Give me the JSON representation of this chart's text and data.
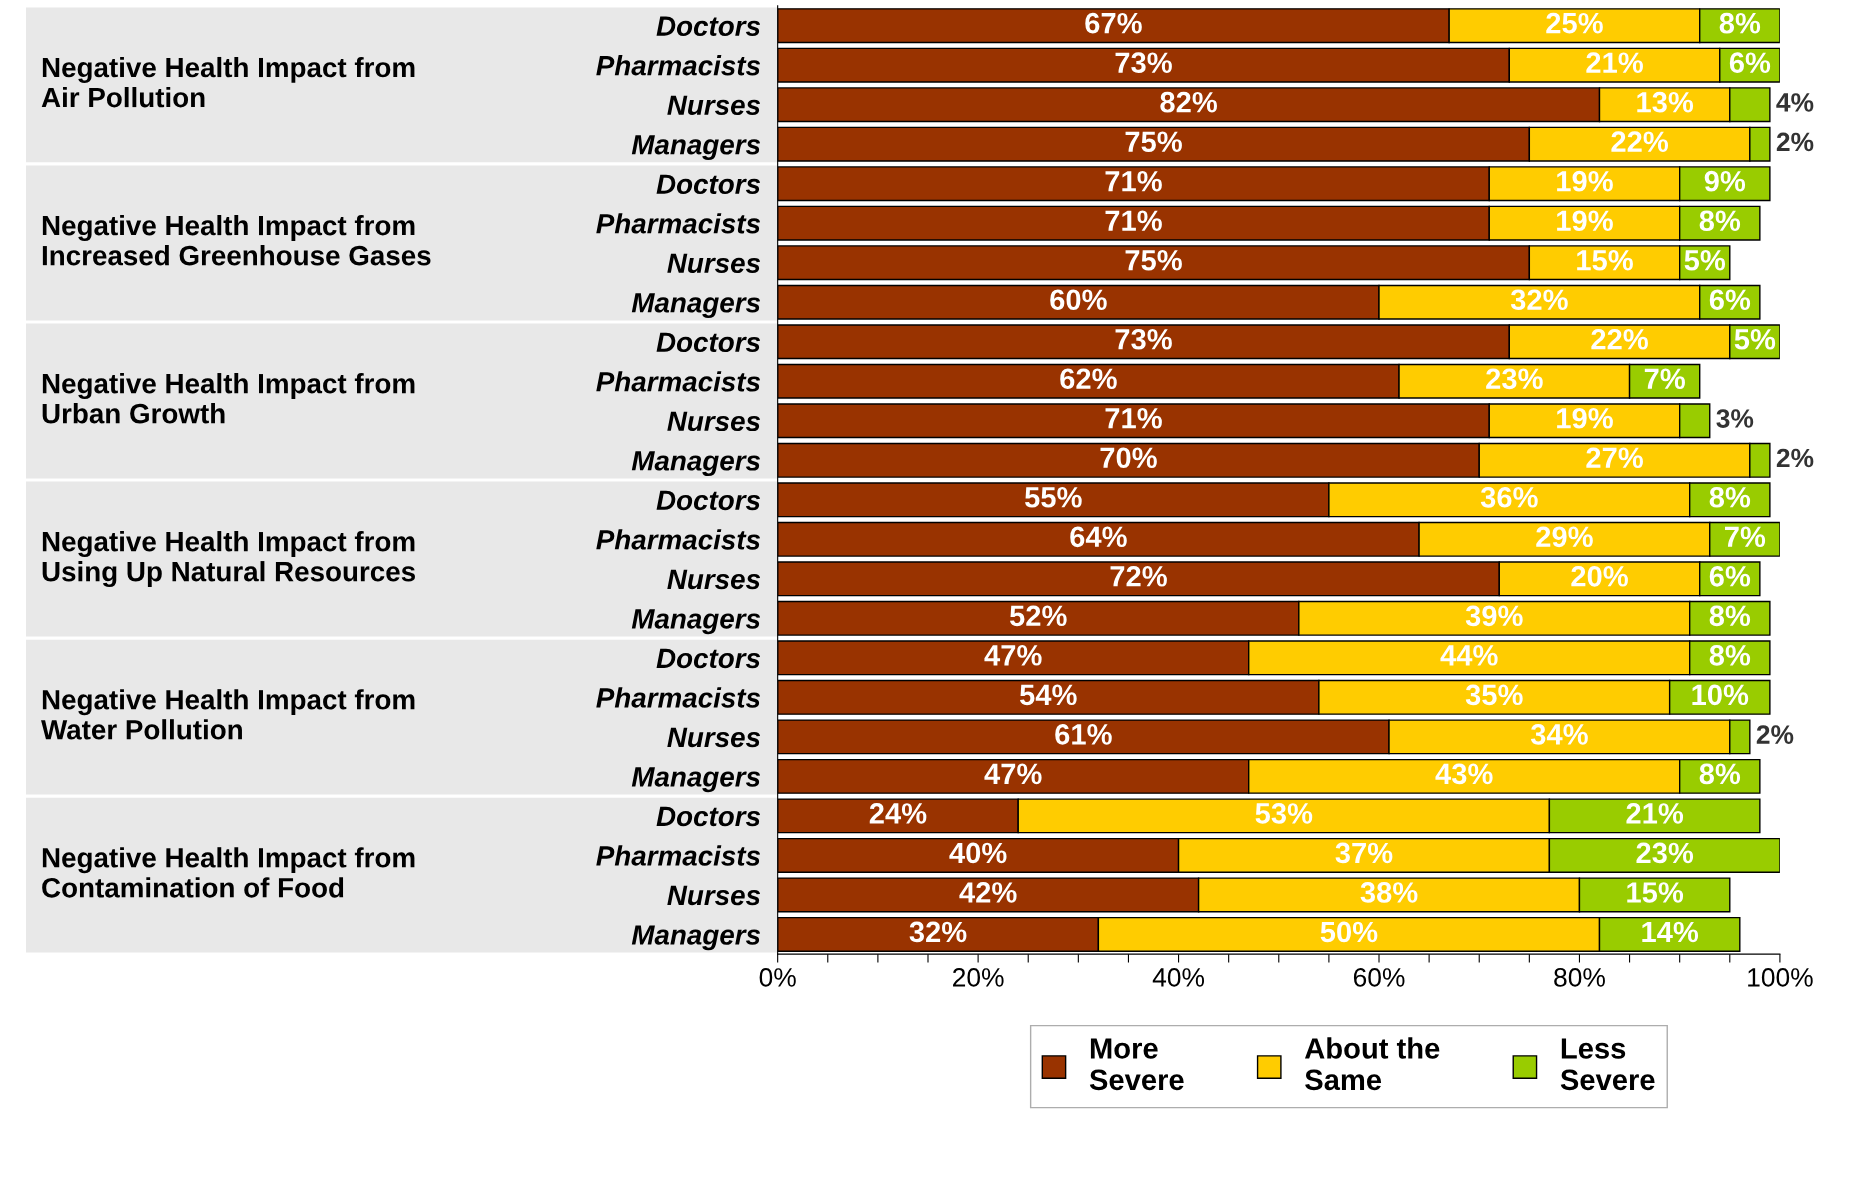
{
  "chart_data": {
    "type": "bar",
    "orientation": "horizontal",
    "stacked": true,
    "categories": [
      "Doctors",
      "Pharmacists",
      "Nurses",
      "Managers",
      "Doctors",
      "Pharmacists",
      "Nurses",
      "Managers",
      "Doctors",
      "Pharmacists",
      "Nurses",
      "Managers",
      "Doctors",
      "Pharmacists",
      "Nurses",
      "Managers",
      "Doctors",
      "Pharmacists",
      "Nurses",
      "Managers",
      "Doctors",
      "Pharmacists",
      "Nurses",
      "Managers"
    ],
    "series": [
      {
        "name": "More\nSevere",
        "color": "#993300",
        "values": [
          67,
          73,
          82,
          75,
          71,
          71,
          75,
          60,
          73,
          62,
          71,
          70,
          55,
          64,
          72,
          52,
          47,
          54,
          61,
          47,
          24,
          40,
          42,
          32
        ],
        "value_labels": [
          "67%",
          "73%",
          "82%",
          "75%",
          "71%",
          "71%",
          "75%",
          "60%",
          "73%",
          "62%",
          "71%",
          "70%",
          "55%",
          "64%",
          "72%",
          "52%",
          "47%",
          "54%",
          "61%",
          "47%",
          "24%",
          "40%",
          "42%",
          "32%"
        ]
      },
      {
        "name": "About the\nSame",
        "color": "#ffcc00",
        "values": [
          25,
          21,
          13,
          22,
          19,
          19,
          15,
          32,
          22,
          23,
          19,
          27,
          36,
          29,
          20,
          39,
          44,
          35,
          34,
          43,
          53,
          37,
          38,
          50
        ],
        "value_labels": [
          "25%",
          "21%",
          "13%",
          "22%",
          "19%",
          "19%",
          "15%",
          "32%",
          "22%",
          "23%",
          "19%",
          "27%",
          "36%",
          "29%",
          "20%",
          "39%",
          "44%",
          "35%",
          "34%",
          "43%",
          "53%",
          "37%",
          "38%",
          "50%"
        ]
      },
      {
        "name": "Less\nSevere",
        "color": "#99cc00",
        "values": [
          8,
          6,
          4,
          2,
          9,
          8,
          5,
          6,
          5,
          7,
          3,
          2,
          8,
          7,
          6,
          8,
          8,
          10,
          2,
          8,
          21,
          23,
          15,
          14
        ],
        "value_labels": [
          "8%",
          "6%",
          "4%",
          "2%",
          "9%",
          "8%",
          "5%",
          "6%",
          "5%",
          "7%",
          "3%",
          "2%",
          "8%",
          "7%",
          "6%",
          "8%",
          "8%",
          "10%",
          "2%",
          "8%",
          "21%",
          "23%",
          "15%",
          "14%"
        ]
      }
    ],
    "xlim": [
      0,
      100
    ],
    "xticks": [
      {
        "value": 0,
        "label": "0%"
      },
      {
        "value": 5,
        "label": null
      },
      {
        "value": 10,
        "label": null
      },
      {
        "value": 15,
        "label": null
      },
      {
        "value": 20,
        "label": "20%"
      },
      {
        "value": 25,
        "label": null
      },
      {
        "value": 30,
        "label": null
      },
      {
        "value": 35,
        "label": null
      },
      {
        "value": 40,
        "label": "40%"
      },
      {
        "value": 45,
        "label": null
      },
      {
        "value": 50,
        "label": null
      },
      {
        "value": 55,
        "label": null
      },
      {
        "value": 60,
        "label": "60%"
      },
      {
        "value": 65,
        "label": null
      },
      {
        "value": 70,
        "label": null
      },
      {
        "value": 75,
        "label": null
      },
      {
        "value": 80,
        "label": "80%"
      },
      {
        "value": 85,
        "label": null
      },
      {
        "value": 90,
        "label": null
      },
      {
        "value": 95,
        "label": null
      },
      {
        "value": 100,
        "label": "100%"
      }
    ],
    "annotations": [
      "Negative Health Impact from\nAir Pollution",
      "Negative Health Impact from\nIncreased Greenhouse Gases",
      "Negative Health Impact from\nUrban Growth",
      "Negative Health Impact from\nUsing Up Natural Resources",
      "Negative Health Impact from\nWater Pollution",
      "Negative Health Impact from\nContamination of Food"
    ],
    "legend": "bottom",
    "grid": false
  }
}
